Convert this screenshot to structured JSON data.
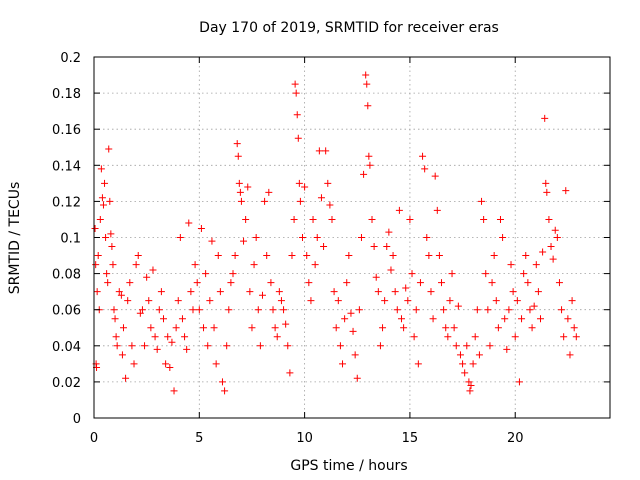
{
  "chart_data": {
    "type": "scatter",
    "title": "Day 170 of 2019, SRMTID for receiver eras",
    "xlabel": "GPS time / hours",
    "ylabel": "SRMTID / TECUs",
    "xlim": [
      0,
      24.5
    ],
    "ylim": [
      0,
      0.2
    ],
    "x_ticks": [
      0,
      5,
      10,
      15,
      20
    ],
    "x_tick_labels": [
      "0",
      "5",
      "10",
      "15",
      "20"
    ],
    "y_ticks": [
      0,
      0.02,
      0.04,
      0.06,
      0.08,
      0.1,
      0.12,
      0.14,
      0.16,
      0.18,
      0.2
    ],
    "y_tick_labels": [
      "0",
      "0.02",
      "0.04",
      "0.06",
      "0.08",
      "0.1",
      "0.12",
      "0.14",
      "0.16",
      "0.18",
      "0.2"
    ],
    "grid": true,
    "marker": "+",
    "color": "#ff0000",
    "series": [
      {
        "name": "eras",
        "points": [
          [
            0.05,
            0.105
          ],
          [
            0.08,
            0.085
          ],
          [
            0.1,
            0.03
          ],
          [
            0.12,
            0.028
          ],
          [
            0.15,
            0.07
          ],
          [
            0.2,
            0.09
          ],
          [
            0.25,
            0.06
          ],
          [
            0.3,
            0.11
          ],
          [
            0.35,
            0.138
          ],
          [
            0.4,
            0.122
          ],
          [
            0.45,
            0.118
          ],
          [
            0.5,
            0.13
          ],
          [
            0.55,
            0.1
          ],
          [
            0.6,
            0.08
          ],
          [
            0.65,
            0.075
          ],
          [
            0.7,
            0.149
          ],
          [
            0.75,
            0.12
          ],
          [
            0.8,
            0.102
          ],
          [
            0.85,
            0.095
          ],
          [
            0.9,
            0.085
          ],
          [
            0.95,
            0.06
          ],
          [
            1.0,
            0.055
          ],
          [
            1.05,
            0.045
          ],
          [
            1.1,
            0.04
          ],
          [
            1.2,
            0.07
          ],
          [
            1.3,
            0.068
          ],
          [
            1.35,
            0.035
          ],
          [
            1.4,
            0.05
          ],
          [
            1.5,
            0.022
          ],
          [
            1.6,
            0.065
          ],
          [
            1.7,
            0.075
          ],
          [
            1.8,
            0.04
          ],
          [
            1.9,
            0.03
          ],
          [
            2.0,
            0.085
          ],
          [
            2.1,
            0.09
          ],
          [
            2.2,
            0.058
          ],
          [
            2.3,
            0.06
          ],
          [
            2.4,
            0.04
          ],
          [
            2.5,
            0.078
          ],
          [
            2.6,
            0.065
          ],
          [
            2.7,
            0.05
          ],
          [
            2.8,
            0.082
          ],
          [
            2.9,
            0.045
          ],
          [
            3.0,
            0.038
          ],
          [
            3.1,
            0.06
          ],
          [
            3.2,
            0.07
          ],
          [
            3.3,
            0.055
          ],
          [
            3.4,
            0.03
          ],
          [
            3.5,
            0.045
          ],
          [
            3.6,
            0.028
          ],
          [
            3.7,
            0.042
          ],
          [
            3.8,
            0.015
          ],
          [
            3.9,
            0.05
          ],
          [
            4.0,
            0.065
          ],
          [
            4.1,
            0.1
          ],
          [
            4.2,
            0.055
          ],
          [
            4.3,
            0.045
          ],
          [
            4.4,
            0.038
          ],
          [
            4.5,
            0.108
          ],
          [
            4.6,
            0.07
          ],
          [
            4.7,
            0.06
          ],
          [
            4.8,
            0.085
          ],
          [
            4.9,
            0.075
          ],
          [
            5.0,
            0.06
          ],
          [
            5.1,
            0.105
          ],
          [
            5.2,
            0.05
          ],
          [
            5.3,
            0.08
          ],
          [
            5.4,
            0.04
          ],
          [
            5.5,
            0.065
          ],
          [
            5.6,
            0.098
          ],
          [
            5.7,
            0.05
          ],
          [
            5.8,
            0.03
          ],
          [
            5.9,
            0.09
          ],
          [
            6.0,
            0.07
          ],
          [
            6.1,
            0.02
          ],
          [
            6.2,
            0.015
          ],
          [
            6.3,
            0.04
          ],
          [
            6.4,
            0.06
          ],
          [
            6.5,
            0.075
          ],
          [
            6.6,
            0.08
          ],
          [
            6.7,
            0.09
          ],
          [
            6.8,
            0.152
          ],
          [
            6.85,
            0.145
          ],
          [
            6.9,
            0.13
          ],
          [
            6.95,
            0.125
          ],
          [
            7.0,
            0.12
          ],
          [
            7.1,
            0.098
          ],
          [
            7.2,
            0.11
          ],
          [
            7.3,
            0.128
          ],
          [
            7.4,
            0.07
          ],
          [
            7.5,
            0.05
          ],
          [
            7.6,
            0.085
          ],
          [
            7.7,
            0.1
          ],
          [
            7.8,
            0.06
          ],
          [
            7.9,
            0.04
          ],
          [
            8.0,
            0.068
          ],
          [
            8.1,
            0.12
          ],
          [
            8.2,
            0.09
          ],
          [
            8.3,
            0.125
          ],
          [
            8.4,
            0.075
          ],
          [
            8.5,
            0.06
          ],
          [
            8.6,
            0.05
          ],
          [
            8.7,
            0.045
          ],
          [
            8.8,
            0.07
          ],
          [
            8.9,
            0.065
          ],
          [
            9.0,
            0.06
          ],
          [
            9.1,
            0.052
          ],
          [
            9.2,
            0.04
          ],
          [
            9.3,
            0.025
          ],
          [
            9.4,
            0.09
          ],
          [
            9.5,
            0.11
          ],
          [
            9.55,
            0.185
          ],
          [
            9.6,
            0.18
          ],
          [
            9.65,
            0.168
          ],
          [
            9.7,
            0.155
          ],
          [
            9.75,
            0.13
          ],
          [
            9.8,
            0.12
          ],
          [
            9.9,
            0.1
          ],
          [
            10.0,
            0.128
          ],
          [
            10.1,
            0.09
          ],
          [
            10.2,
            0.075
          ],
          [
            10.3,
            0.065
          ],
          [
            10.4,
            0.11
          ],
          [
            10.5,
            0.085
          ],
          [
            10.6,
            0.1
          ],
          [
            10.7,
            0.148
          ],
          [
            10.8,
            0.122
          ],
          [
            10.9,
            0.095
          ],
          [
            11.0,
            0.148
          ],
          [
            11.1,
            0.13
          ],
          [
            11.2,
            0.118
          ],
          [
            11.3,
            0.11
          ],
          [
            11.4,
            0.07
          ],
          [
            11.5,
            0.05
          ],
          [
            11.6,
            0.065
          ],
          [
            11.7,
            0.04
          ],
          [
            11.8,
            0.03
          ],
          [
            11.9,
            0.055
          ],
          [
            12.0,
            0.075
          ],
          [
            12.1,
            0.09
          ],
          [
            12.2,
            0.058
          ],
          [
            12.3,
            0.048
          ],
          [
            12.4,
            0.035
          ],
          [
            12.5,
            0.022
          ],
          [
            12.6,
            0.06
          ],
          [
            12.7,
            0.1
          ],
          [
            12.8,
            0.135
          ],
          [
            12.9,
            0.19
          ],
          [
            12.95,
            0.185
          ],
          [
            13.0,
            0.173
          ],
          [
            13.05,
            0.145
          ],
          [
            13.1,
            0.14
          ],
          [
            13.2,
            0.11
          ],
          [
            13.3,
            0.095
          ],
          [
            13.4,
            0.078
          ],
          [
            13.5,
            0.07
          ],
          [
            13.6,
            0.04
          ],
          [
            13.7,
            0.05
          ],
          [
            13.8,
            0.065
          ],
          [
            13.9,
            0.095
          ],
          [
            14.0,
            0.103
          ],
          [
            14.1,
            0.082
          ],
          [
            14.2,
            0.09
          ],
          [
            14.3,
            0.07
          ],
          [
            14.4,
            0.06
          ],
          [
            14.5,
            0.115
          ],
          [
            14.6,
            0.055
          ],
          [
            14.7,
            0.05
          ],
          [
            14.8,
            0.072
          ],
          [
            14.9,
            0.065
          ],
          [
            15.0,
            0.11
          ],
          [
            15.1,
            0.08
          ],
          [
            15.2,
            0.045
          ],
          [
            15.3,
            0.06
          ],
          [
            15.4,
            0.03
          ],
          [
            15.5,
            0.075
          ],
          [
            15.6,
            0.145
          ],
          [
            15.7,
            0.138
          ],
          [
            15.8,
            0.1
          ],
          [
            15.9,
            0.09
          ],
          [
            16.0,
            0.07
          ],
          [
            16.1,
            0.055
          ],
          [
            16.2,
            0.134
          ],
          [
            16.3,
            0.115
          ],
          [
            16.4,
            0.09
          ],
          [
            16.5,
            0.075
          ],
          [
            16.6,
            0.06
          ],
          [
            16.7,
            0.05
          ],
          [
            16.8,
            0.045
          ],
          [
            16.9,
            0.065
          ],
          [
            17.0,
            0.08
          ],
          [
            17.1,
            0.05
          ],
          [
            17.2,
            0.04
          ],
          [
            17.3,
            0.062
          ],
          [
            17.4,
            0.035
          ],
          [
            17.5,
            0.03
          ],
          [
            17.6,
            0.025
          ],
          [
            17.7,
            0.04
          ],
          [
            17.8,
            0.02
          ],
          [
            17.85,
            0.015
          ],
          [
            17.9,
            0.018
          ],
          [
            18.0,
            0.03
          ],
          [
            18.1,
            0.045
          ],
          [
            18.2,
            0.06
          ],
          [
            18.3,
            0.035
          ],
          [
            18.4,
            0.12
          ],
          [
            18.5,
            0.11
          ],
          [
            18.6,
            0.08
          ],
          [
            18.7,
            0.06
          ],
          [
            18.8,
            0.04
          ],
          [
            18.9,
            0.075
          ],
          [
            19.0,
            0.09
          ],
          [
            19.1,
            0.065
          ],
          [
            19.2,
            0.05
          ],
          [
            19.3,
            0.11
          ],
          [
            19.4,
            0.1
          ],
          [
            19.5,
            0.055
          ],
          [
            19.6,
            0.038
          ],
          [
            19.7,
            0.06
          ],
          [
            19.8,
            0.085
          ],
          [
            19.9,
            0.07
          ],
          [
            20.0,
            0.045
          ],
          [
            20.1,
            0.065
          ],
          [
            20.2,
            0.02
          ],
          [
            20.3,
            0.055
          ],
          [
            20.4,
            0.08
          ],
          [
            20.5,
            0.09
          ],
          [
            20.6,
            0.075
          ],
          [
            20.7,
            0.06
          ],
          [
            20.8,
            0.05
          ],
          [
            20.9,
            0.062
          ],
          [
            21.0,
            0.085
          ],
          [
            21.1,
            0.07
          ],
          [
            21.2,
            0.055
          ],
          [
            21.3,
            0.092
          ],
          [
            21.4,
            0.166
          ],
          [
            21.45,
            0.13
          ],
          [
            21.5,
            0.125
          ],
          [
            21.6,
            0.11
          ],
          [
            21.7,
            0.095
          ],
          [
            21.8,
            0.088
          ],
          [
            21.9,
            0.104
          ],
          [
            22.0,
            0.1
          ],
          [
            22.1,
            0.075
          ],
          [
            22.2,
            0.06
          ],
          [
            22.3,
            0.045
          ],
          [
            22.4,
            0.126
          ],
          [
            22.5,
            0.055
          ],
          [
            22.6,
            0.035
          ],
          [
            22.7,
            0.065
          ],
          [
            22.8,
            0.05
          ],
          [
            22.9,
            0.045
          ]
        ]
      }
    ]
  }
}
